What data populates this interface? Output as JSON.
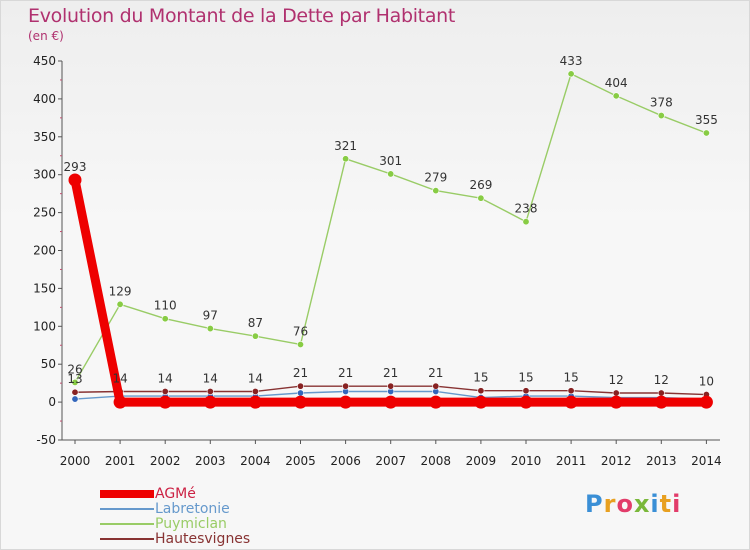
{
  "title": "Evolution du Montant de la Dette par Habitant",
  "subtitle": "(en €)",
  "logo": {
    "text": "Proxiti",
    "colors": [
      "#3a8fd6",
      "#e8a020",
      "#e23c6a",
      "#7ab83a"
    ]
  },
  "chart_data": {
    "type": "line",
    "title": "Evolution du Montant de la Dette par Habitant",
    "ylabel": "(en €)",
    "ylim": [
      -50,
      450
    ],
    "yticks": [
      -50,
      0,
      50,
      100,
      150,
      200,
      250,
      300,
      350,
      400,
      450
    ],
    "categories": [
      "2000",
      "2001",
      "2002",
      "2003",
      "2004",
      "2005",
      "2006",
      "2007",
      "2008",
      "2009",
      "2010",
      "2011",
      "2012",
      "2013",
      "2014"
    ],
    "grid": false,
    "legend_position": "bottom-left",
    "series": [
      {
        "name": "AGMé",
        "color": "#ee0000",
        "values": [
          293,
          0,
          0,
          0,
          0,
          0,
          0,
          0,
          0,
          0,
          0,
          0,
          0,
          0,
          0
        ],
        "labels": [
          "293",
          "",
          "",
          "",
          "",
          "",
          "",
          "",
          "",
          "",
          "",
          "",
          "",
          "",
          ""
        ]
      },
      {
        "name": "Labretonie",
        "color": "#6699cc",
        "values": [
          4,
          8,
          8,
          8,
          8,
          12,
          14,
          14,
          14,
          6,
          8,
          8,
          6,
          6,
          4
        ],
        "labels": [
          "",
          "",
          "",
          "",
          "",
          "",
          "",
          "",
          "",
          "",
          "",
          "",
          "",
          "",
          ""
        ]
      },
      {
        "name": "Puymiclan",
        "color": "#99cc66",
        "values": [
          26,
          129,
          110,
          97,
          87,
          76,
          321,
          301,
          279,
          269,
          238,
          433,
          404,
          378,
          355
        ],
        "labels": [
          "26",
          "129",
          "110",
          "97",
          "87",
          "76",
          "321",
          "301",
          "279",
          "269",
          "238",
          "433",
          "404",
          "378",
          "355"
        ]
      },
      {
        "name": "Hautesvignes",
        "color": "#883333",
        "values": [
          13,
          14,
          14,
          14,
          14,
          21,
          21,
          21,
          21,
          15,
          15,
          15,
          12,
          12,
          10
        ],
        "labels": [
          "13",
          "14",
          "14",
          "14",
          "14",
          "21",
          "21",
          "21",
          "21",
          "15",
          "15",
          "15",
          "12",
          "12",
          "10"
        ]
      }
    ]
  }
}
